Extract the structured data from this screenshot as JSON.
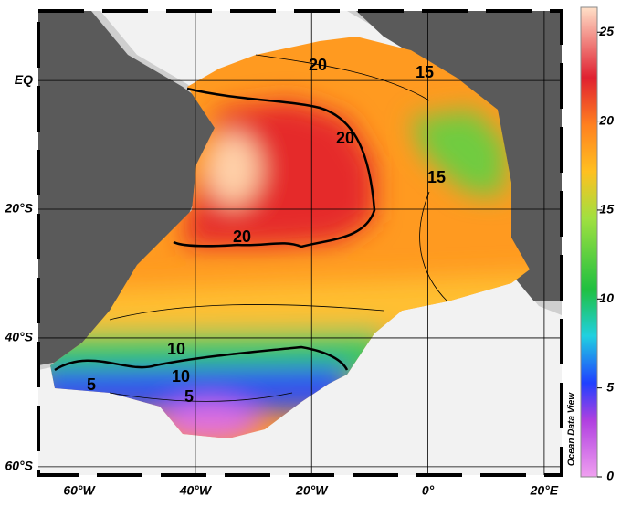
{
  "map": {
    "lonlim": [
      -67,
      23
    ],
    "latlim": [
      -61.3,
      10.8
    ],
    "lon_ticks": [
      {
        "value": -60,
        "label": "60°W"
      },
      {
        "value": -40,
        "label": "40°W"
      },
      {
        "value": -20,
        "label": "20°W"
      },
      {
        "value": 0,
        "label": "0°"
      },
      {
        "value": 20,
        "label": "20°E"
      }
    ],
    "lat_ticks": [
      {
        "value": 0,
        "label": "EQ"
      },
      {
        "value": -20,
        "label": "20°S"
      },
      {
        "value": -40,
        "label": "40°S"
      },
      {
        "value": -60,
        "label": "60°S"
      }
    ],
    "contour_labels": [
      20,
      15,
      20,
      15,
      20,
      10,
      10,
      5,
      5
    ]
  },
  "colorbar": {
    "lim": [
      0,
      26.4
    ],
    "ticks": [
      0,
      5,
      10,
      15,
      20,
      25
    ],
    "label": "Ocean Data View"
  }
}
